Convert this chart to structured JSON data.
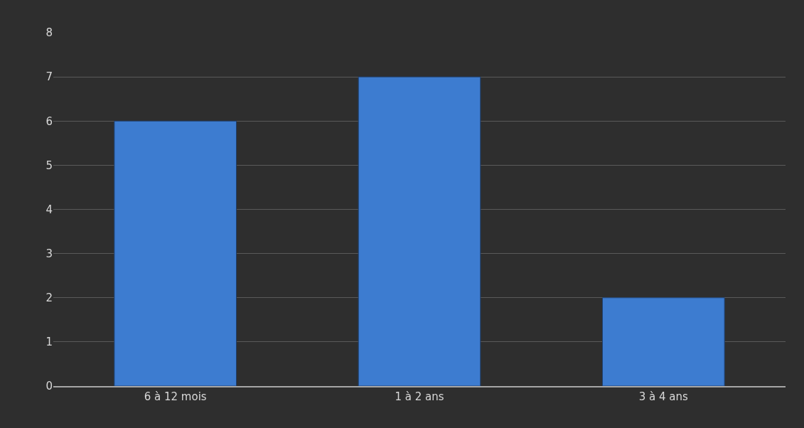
{
  "chart_data": {
    "type": "bar",
    "categories": [
      "6 à 12 mois",
      "1 à 2 ans",
      "3 à 4 ans"
    ],
    "values": [
      6,
      7,
      2
    ],
    "color": "#3d7cd0",
    "ylim": [
      0,
      8
    ],
    "yticks": [
      0,
      1,
      2,
      3,
      4,
      5,
      6,
      7,
      8
    ],
    "grid": "y"
  }
}
